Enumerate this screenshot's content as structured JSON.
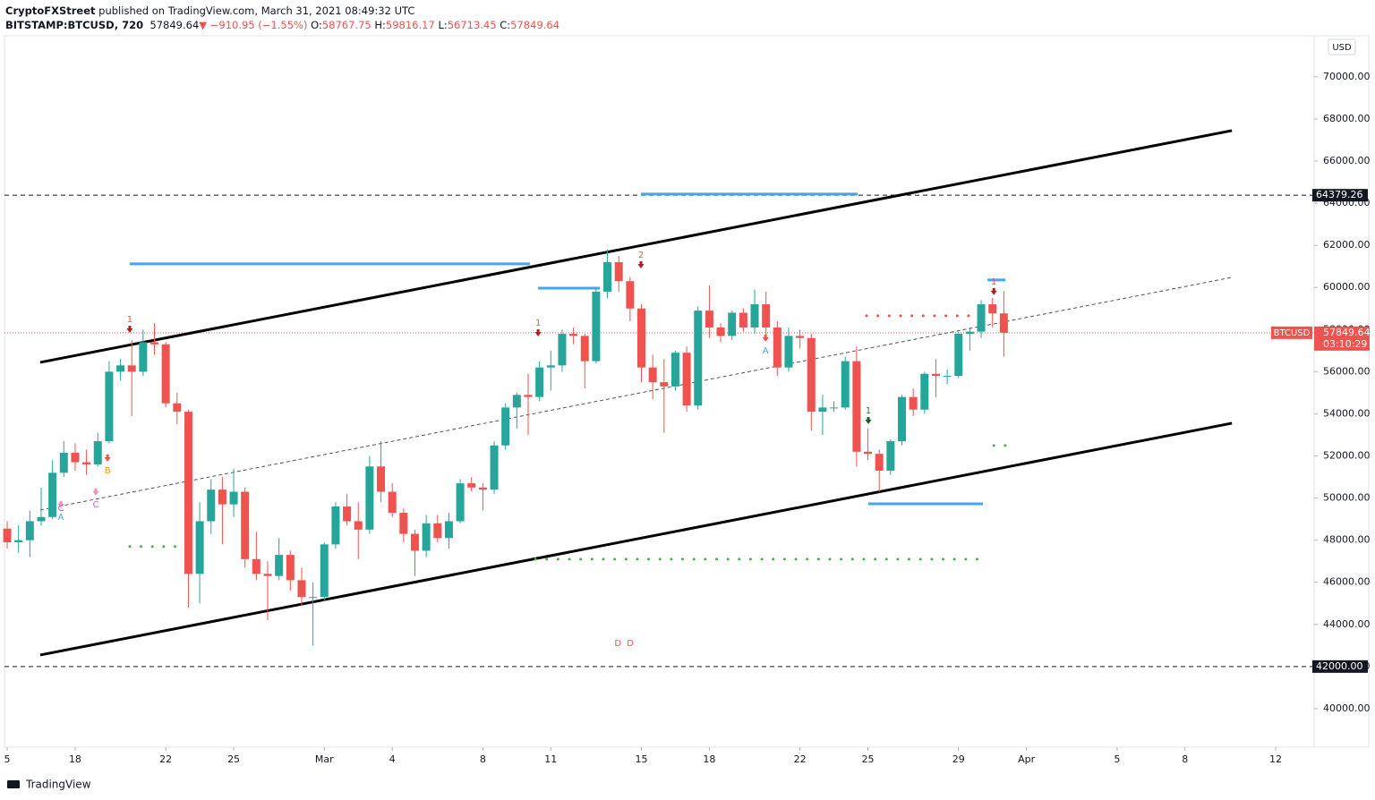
{
  "header": {
    "author": "CryptoFXStreet",
    "published": "published on TradingView.com, March 31, 2021 08:49:32 UTC",
    "symbol": "BITSTAMP:BTCUSD, 720",
    "last": "57849.64",
    "change": "▼ −910.95 (−1.55%)",
    "ohlc": [
      {
        "label": "O:",
        "value": "58767.75"
      },
      {
        "label": "H:",
        "value": "59816.17"
      },
      {
        "label": "L:",
        "value": "56713.45"
      },
      {
        "label": "C:",
        "value": "57849.64"
      }
    ]
  },
  "chart_data": {
    "type": "candlestick",
    "currency": "USD",
    "up_color": "#26a69a",
    "down_color": "#ef5350",
    "x": [
      14,
      14.5,
      15,
      15.5,
      16,
      16.5,
      17,
      17.5,
      18,
      18.5,
      19,
      19.5,
      20,
      20.5,
      21,
      21.5,
      22,
      22.5,
      23,
      23.5,
      24,
      24.5,
      25,
      25.5,
      26,
      26.5,
      27,
      27.5,
      28,
      28.5,
      29,
      29.5,
      30,
      30.5,
      31,
      31.5,
      32,
      32.5,
      33,
      33.5,
      34,
      34.5,
      35,
      35.5,
      36,
      36.5,
      37,
      37.5,
      38,
      38.5,
      39,
      39.5,
      40,
      40.5,
      41,
      41.5,
      42,
      42.5,
      43,
      43.5,
      44,
      44.5,
      45,
      45.5,
      46,
      46.5,
      47,
      47.5,
      48,
      48.5,
      49,
      49.5,
      50,
      50.5,
      51,
      51.5,
      52,
      52.5,
      53,
      53.5,
      54,
      54.5,
      55,
      55.5,
      56,
      56.5,
      57,
      57.5,
      58
    ],
    "open": [
      48550,
      47900,
      48000,
      48900,
      49100,
      51200,
      52150,
      51700,
      51600,
      52700,
      56000,
      56300,
      56000,
      57400,
      57300,
      54500,
      54100,
      46400,
      48900,
      50400,
      49700,
      50300,
      47100,
      46400,
      46300,
      47300,
      46100,
      45300,
      45300,
      47800,
      49600,
      48900,
      48500,
      51500,
      50300,
      49300,
      48300,
      47500,
      48800,
      48100,
      48900,
      50700,
      50500,
      50400,
      52500,
      54300,
      54900,
      54800,
      56200,
      56300,
      57800,
      57700,
      56500,
      59800,
      61200,
      60300,
      59000,
      56200,
      55500,
      55300,
      56900,
      54400,
      58900,
      58100,
      57700,
      58800,
      58100,
      59200,
      58100,
      56200,
      57700,
      57600,
      54100,
      54300,
      54300,
      56500,
      52200,
      52100,
      51300,
      52700,
      54800,
      54200,
      55900,
      55800,
      55800,
      57800,
      57900,
      59200,
      58767.75
    ],
    "high": [
      48900,
      48700,
      49400,
      50500,
      51800,
      52700,
      52600,
      52300,
      53100,
      56500,
      56600,
      57500,
      58000,
      58300,
      57400,
      55000,
      54200,
      49800,
      50900,
      51000,
      51400,
      50500,
      48400,
      47000,
      48100,
      47500,
      46700,
      46000,
      47900,
      49800,
      50200,
      49800,
      52000,
      52700,
      50700,
      49500,
      48500,
      49200,
      49200,
      49300,
      50900,
      51000,
      50700,
      52700,
      54500,
      55000,
      55900,
      56500,
      57000,
      58000,
      58100,
      57800,
      60000,
      61800,
      61500,
      60500,
      59200,
      56800,
      56600,
      57000,
      57200,
      59100,
      60100,
      58300,
      58900,
      59000,
      59900,
      59800,
      58400,
      58100,
      58000,
      57800,
      54900,
      54600,
      56700,
      57200,
      53300,
      52300,
      52800,
      54900,
      55200,
      56000,
      56600,
      56100,
      57900,
      58100,
      59400,
      59500,
      59816.17
    ],
    "low": [
      47600,
      47400,
      47200,
      48700,
      49000,
      51000,
      51300,
      51100,
      51500,
      52600,
      55600,
      53900,
      55800,
      56800,
      54300,
      53500,
      44800,
      45000,
      48300,
      47800,
      49100,
      46700,
      46100,
      44200,
      46100,
      45600,
      44900,
      43000,
      45100,
      47600,
      48700,
      47100,
      48300,
      49800,
      49100,
      47900,
      46300,
      47200,
      47900,
      47600,
      48800,
      50300,
      49400,
      50200,
      52300,
      53300,
      53000,
      54600,
      55100,
      56000,
      57300,
      55200,
      56400,
      59500,
      59800,
      58400,
      55500,
      54700,
      53100,
      55100,
      54100,
      54200,
      57600,
      57400,
      57500,
      57900,
      57800,
      57700,
      55800,
      56000,
      57100,
      53200,
      53000,
      54100,
      54200,
      51500,
      51800,
      50300,
      51100,
      52500,
      53900,
      54000,
      54800,
      55400,
      55700,
      57000,
      57600,
      58100,
      56713.45
    ],
    "close": [
      47900,
      48000,
      48900,
      49100,
      51200,
      52150,
      51700,
      51600,
      52700,
      56000,
      56300,
      56000,
      57400,
      57300,
      54500,
      54100,
      46400,
      48900,
      50400,
      49700,
      50300,
      47100,
      46400,
      46300,
      47300,
      46100,
      45300,
      45300,
      47800,
      49600,
      48900,
      48500,
      51500,
      50300,
      49300,
      48300,
      47500,
      48800,
      48100,
      48900,
      50700,
      50500,
      50400,
      52500,
      54300,
      54900,
      54800,
      56200,
      56300,
      57800,
      57700,
      56500,
      59800,
      61200,
      60300,
      59000,
      56200,
      55500,
      55300,
      56900,
      54400,
      58900,
      58100,
      57700,
      58800,
      58100,
      59200,
      58100,
      56200,
      57700,
      57600,
      54100,
      54300,
      54300,
      56500,
      52200,
      52100,
      51300,
      52700,
      54800,
      54200,
      55900,
      55800,
      55800,
      57800,
      57900,
      59200,
      58767.75,
      57849.64
    ],
    "xlim": [
      13.88,
      71.7
    ],
    "xticks": [
      {
        "value": 14,
        "label": "5"
      },
      {
        "value": 17,
        "label": "18"
      },
      {
        "value": 21,
        "label": "22"
      },
      {
        "value": 24,
        "label": "25"
      },
      {
        "value": 28,
        "label": "Mar"
      },
      {
        "value": 31,
        "label": "4"
      },
      {
        "value": 35,
        "label": "8"
      },
      {
        "value": 38,
        "label": "11"
      },
      {
        "value": 42,
        "label": "15"
      },
      {
        "value": 45,
        "label": "18"
      },
      {
        "value": 49,
        "label": "22"
      },
      {
        "value": 52,
        "label": "25"
      },
      {
        "value": 56,
        "label": "29"
      },
      {
        "value": 59,
        "label": "Apr"
      },
      {
        "value": 63,
        "label": "5"
      },
      {
        "value": 66,
        "label": "8"
      },
      {
        "value": 70,
        "label": "12"
      }
    ],
    "ylim": [
      38170,
      71950
    ],
    "yticks": [
      {
        "value": 40000,
        "label": "40000.00"
      },
      {
        "value": 42000,
        "label": "42000.00"
      },
      {
        "value": 44000,
        "label": "44000.00"
      },
      {
        "value": 46000,
        "label": "46000.00"
      },
      {
        "value": 48000,
        "label": "48000.00"
      },
      {
        "value": 50000,
        "label": "50000.00"
      },
      {
        "value": 52000,
        "label": "52000.00"
      },
      {
        "value": 54000,
        "label": "54000.00"
      },
      {
        "value": 56000,
        "label": "56000.00"
      },
      {
        "value": 58000,
        "label": "58000.00"
      },
      {
        "value": 60000,
        "label": "60000.00"
      },
      {
        "value": 62000,
        "label": "62000.00"
      },
      {
        "value": 64000,
        "label": "64000.00"
      },
      {
        "value": 66000,
        "label": "66000.00"
      },
      {
        "value": 68000,
        "label": "68000.00"
      },
      {
        "value": 70000,
        "label": "70000.00"
      }
    ],
    "price_lines": [
      {
        "value": 64379.26,
        "label": "64379.26"
      },
      {
        "value": 42000,
        "label": "42000.00"
      }
    ],
    "last_price": {
      "value": 57849.64,
      "label": "57849.64",
      "name": "BTCUSD",
      "countdown": "03:10:29",
      "color": "#ef5350"
    },
    "trend_lines": [
      {
        "x": [
          15.46,
          68.07
        ],
        "y": [
          56444,
          67449
        ],
        "style": "solid",
        "color": "#000000"
      },
      {
        "x": [
          15.46,
          68.07
        ],
        "y": [
          42549,
          53554
        ],
        "style": "solid",
        "color": "#000000"
      },
      {
        "x": [
          15.46,
          68.07
        ],
        "y": [
          49433,
          60480
        ],
        "style": "dashed",
        "color": "#555555"
      }
    ],
    "levels": [
      {
        "x": [
          19.41,
          37.08
        ],
        "y": 61118,
        "style": "solid",
        "color": "#42a5f5"
      },
      {
        "x": [
          37.44,
          40.17
        ],
        "y": 59970,
        "style": "solid",
        "color": "#42a5f5"
      },
      {
        "x": [
          41.98,
          51.55
        ],
        "y": 64432,
        "style": "solid",
        "color": "#42a5f5"
      },
      {
        "x": [
          52.02,
          57.08
        ],
        "y": 49730,
        "style": "solid",
        "color": "#42a5f5"
      },
      {
        "x": [
          57.28,
          58.07
        ],
        "y": 60353,
        "style": "solid",
        "color": "#42a5f5"
      },
      {
        "x": [
          19.41,
          21.51
        ],
        "y": 47700,
        "style": "dotted",
        "color": "#4caf50"
      },
      {
        "x": [
          37.32,
          57.16
        ],
        "y": 47100,
        "style": "dotted",
        "color": "#4caf50"
      },
      {
        "x": [
          51.94,
          56.61
        ],
        "y": 58654,
        "style": "dotted",
        "color": "#ef5350"
      },
      {
        "x": [
          57.56,
          58.15
        ],
        "y": 52492,
        "style": "dotted",
        "color": "#4caf50"
      }
    ],
    "annotations": [
      {
        "text": "1",
        "x": 19.41,
        "y": 58483,
        "color": "#ef5350",
        "arrow": "below",
        "arrow_color": "#b71c1c"
      },
      {
        "text": "1",
        "x": 37.44,
        "y": 58313,
        "color": "#ef5350",
        "arrow": "below",
        "arrow_color": "#b71c1c"
      },
      {
        "text": "2",
        "x": 41.98,
        "y": 61542,
        "color": "#ef5350",
        "arrow": "below",
        "arrow_color": "#b71c1c"
      },
      {
        "text": "1",
        "x": 57.56,
        "y": 60268,
        "color": "#ef5350",
        "arrow": "below",
        "arrow_color": "#b71c1c"
      },
      {
        "text": "1",
        "x": 52.02,
        "y": 54149,
        "color": "#2e7d32",
        "arrow": "below",
        "arrow_color": "#1b5e20"
      },
      {
        "text": "A",
        "x": 47.48,
        "y": 56996,
        "color": "#42a5f5",
        "arrow": "above",
        "arrow_color": "#ef5350"
      },
      {
        "text": "A",
        "x": 16.37,
        "y": 49093,
        "color": "#42a5f5",
        "arrow": "above",
        "arrow_color": "#f48fb1"
      },
      {
        "text": "B",
        "x": 18.43,
        "y": 51302,
        "color": "#ff9800",
        "arrow": "above",
        "arrow_color": "#ef5350"
      },
      {
        "text": "C",
        "x": 16.37,
        "y": 49518,
        "color": "#ba68c8"
      },
      {
        "text": "C",
        "x": 17.91,
        "y": 49688,
        "color": "#ba68c8",
        "arrow": "above",
        "arrow_color": "#f48fb1"
      },
      {
        "text": "D",
        "x": 40.96,
        "y": 43102,
        "color": "#ef5350"
      },
      {
        "text": "D",
        "x": 41.51,
        "y": 43102,
        "color": "#ef5350"
      }
    ]
  },
  "footer": {
    "brand": "TradingView"
  }
}
